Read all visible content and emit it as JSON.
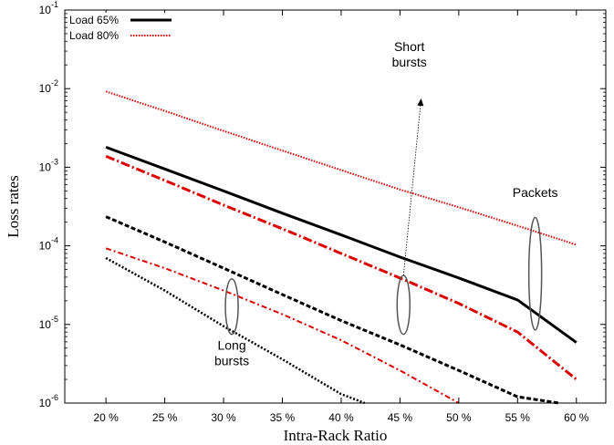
{
  "chart_data": {
    "type": "line",
    "title": "",
    "xlabel": "Intra-Rack Ratio",
    "ylabel": "Loss rates",
    "x_ticks": [
      20,
      25,
      30,
      35,
      40,
      45,
      50,
      55,
      60
    ],
    "x_tick_labels": [
      "20 %",
      "25 %",
      "30 %",
      "35 %",
      "40 %",
      "45 %",
      "50 %",
      "55 %",
      "60 %"
    ],
    "xlim": [
      16.5,
      62.5
    ],
    "y_scale": "log",
    "ylim": [
      1e-06,
      0.1
    ],
    "y_ticks": [
      {
        "value": 1e-06,
        "base": "10",
        "exp": "-6"
      },
      {
        "value": 1e-05,
        "base": "10",
        "exp": "-5"
      },
      {
        "value": 0.0001,
        "base": "10",
        "exp": "-4"
      },
      {
        "value": 0.001,
        "base": "10",
        "exp": "-3"
      },
      {
        "value": 0.01,
        "base": "10",
        "exp": "-2"
      },
      {
        "value": 0.1,
        "base": "10",
        "exp": "-1"
      }
    ],
    "legend": {
      "placement": "top-left",
      "entries": [
        {
          "name": "Load 65%",
          "color": "#000000",
          "style": "solid"
        },
        {
          "name": "Load 80%",
          "color": "#dd0000",
          "style": "dotted"
        }
      ]
    },
    "series": [
      {
        "name": "Load 80%",
        "group": "Packets",
        "color": "#dd0000",
        "style": "dotted",
        "width": 2,
        "x": [
          20,
          25,
          30,
          35,
          40,
          45,
          50,
          55,
          60
        ],
        "y": [
          0.0092,
          0.0052,
          0.0029,
          0.00163,
          0.00092,
          0.00052,
          0.00031,
          0.00018,
          0.000103
        ]
      },
      {
        "name": "Load 65%",
        "group": "Packets",
        "color": "#000000",
        "style": "solid",
        "width": 3,
        "x": [
          20,
          25,
          30,
          35,
          40,
          45,
          50,
          55,
          60
        ],
        "y": [
          0.0018,
          0.00095,
          0.0005,
          0.00026,
          0.000138,
          7.2e-05,
          3.9e-05,
          2.05e-05,
          5.9e-06
        ]
      },
      {
        "group": "Short bursts",
        "color": "#dd0000",
        "style": "dashdot",
        "width": 3,
        "x": [
          20,
          25,
          30,
          35,
          40,
          45,
          50,
          55,
          60
        ],
        "y": [
          0.00138,
          0.00068,
          0.00033,
          0.000165,
          8e-05,
          3.9e-05,
          1.85e-05,
          8e-06,
          2e-06
        ]
      },
      {
        "group": "Short bursts",
        "color": "#000000",
        "style": "dashed",
        "width": 3,
        "x": [
          20,
          25,
          30,
          35,
          40,
          45,
          50,
          55,
          58.5
        ],
        "y": [
          0.000235,
          0.000112,
          5.2e-05,
          2.4e-05,
          1.12e-05,
          5.5e-06,
          2.6e-06,
          1.2e-06,
          1e-06
        ]
      },
      {
        "group": "Long bursts",
        "color": "#dd0000",
        "style": "dashdot-thin",
        "width": 2,
        "x": [
          20,
          25,
          30,
          35,
          40,
          45,
          50
        ],
        "y": [
          9.3e-05,
          5.2e-05,
          2.7e-05,
          1.35e-05,
          6.3e-06,
          2.6e-06,
          1e-06
        ]
      },
      {
        "group": "Long bursts",
        "color": "#000000",
        "style": "dotted-thick",
        "width": 2.5,
        "x": [
          20,
          25,
          30,
          35,
          40,
          42
        ],
        "y": [
          7e-05,
          2.7e-05,
          9.5e-06,
          3.6e-06,
          1.3e-06,
          1e-06
        ]
      }
    ],
    "annotations": [
      {
        "text_lines": [
          "Packets"
        ],
        "ellipse_x": 56.5,
        "ellipse_y_range": [
          8.5e-06,
          0.00023
        ],
        "label_x": 56.5,
        "label_y": 0.00042
      },
      {
        "text_lines": [
          "Short",
          "bursts"
        ],
        "ellipse_x": 45.3,
        "ellipse_y_range": [
          7.5e-06,
          4.2e-05
        ],
        "label_x": 45.8,
        "label_y": 0.03
      },
      {
        "text_lines": [
          "Long",
          "bursts"
        ],
        "ellipse_x": 30.7,
        "ellipse_y_range": [
          7.5e-06,
          3.8e-05
        ],
        "label_x": 30.7,
        "label_y": 4.8e-06
      }
    ],
    "arrow": {
      "from_x": 45.3,
      "from_y": 4.2e-05,
      "to_x": 46.8,
      "to_y": 0.0075
    }
  }
}
